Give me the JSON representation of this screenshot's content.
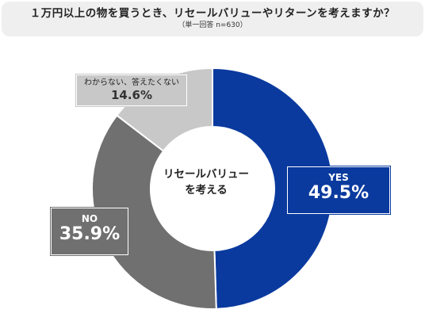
{
  "title": "１万円以上の物を買うとき、リセールバリューやリターンを考えますか？",
  "subtitle": "（単一回答 n=630）",
  "center_label_line1": "リセールバリュー",
  "center_label_line2": "を考える",
  "colors": {
    "yes": "#0a3a9e",
    "no": "#707070",
    "dk": "#c8c8c8"
  },
  "labels": {
    "yes": {
      "label": "YES",
      "value": "49.5%"
    },
    "no": {
      "label": "NO",
      "value": "35.9%"
    },
    "dk": {
      "label": "わからない、答えたくない",
      "value": "14.6%"
    }
  },
  "chart_data": {
    "type": "pie",
    "donut": true,
    "title": "１万円以上の物を買うとき、リセールバリューやリターンを考えますか？",
    "subtitle": "（単一回答 n=630）",
    "categories": [
      "YES",
      "NO",
      "わからない、答えたくない"
    ],
    "values": [
      49.5,
      35.9,
      14.6
    ],
    "unit": "%",
    "start": "top, clockwise"
  }
}
